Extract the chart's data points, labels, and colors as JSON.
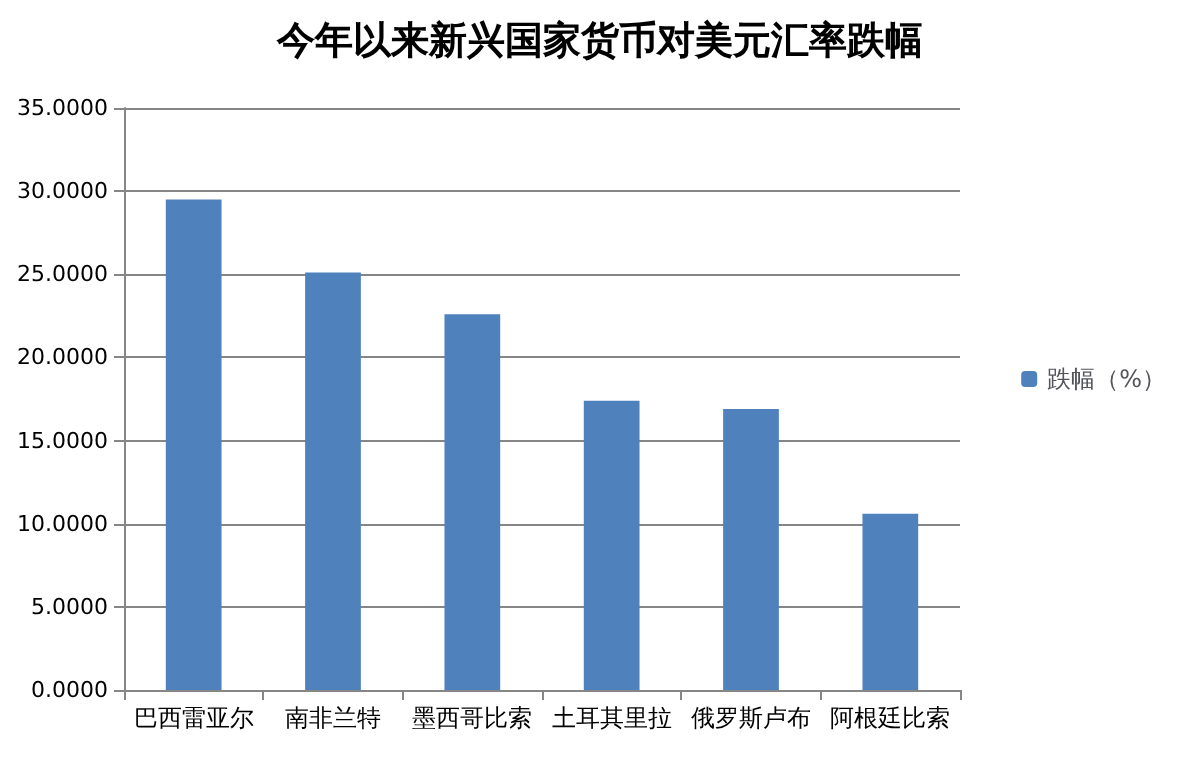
{
  "chart_data": {
    "type": "bar",
    "title": "今年以来新兴国家货币对美元汇率跌幅",
    "categories": [
      "巴西雷亚尔",
      "南非兰特",
      "墨西哥比索",
      "土耳其里拉",
      "俄罗斯卢布",
      "阿根廷比索"
    ],
    "series": [
      {
        "name": "跌幅（%）",
        "color": "#4f81bd",
        "values": [
          29.5,
          25.1,
          22.6,
          17.4,
          16.9,
          10.6
        ]
      }
    ],
    "ylim": [
      0,
      35
    ],
    "yticks": [
      {
        "value": 0,
        "label": "0.0000"
      },
      {
        "value": 5,
        "label": "5.0000"
      },
      {
        "value": 10,
        "label": "10.0000"
      },
      {
        "value": 15,
        "label": "15.0000"
      },
      {
        "value": 20,
        "label": "20.0000"
      },
      {
        "value": 25,
        "label": "25.0000"
      },
      {
        "value": 30,
        "label": "30.0000"
      },
      {
        "value": 35,
        "label": "35.0000"
      }
    ],
    "grid": "y",
    "legend": "right"
  }
}
